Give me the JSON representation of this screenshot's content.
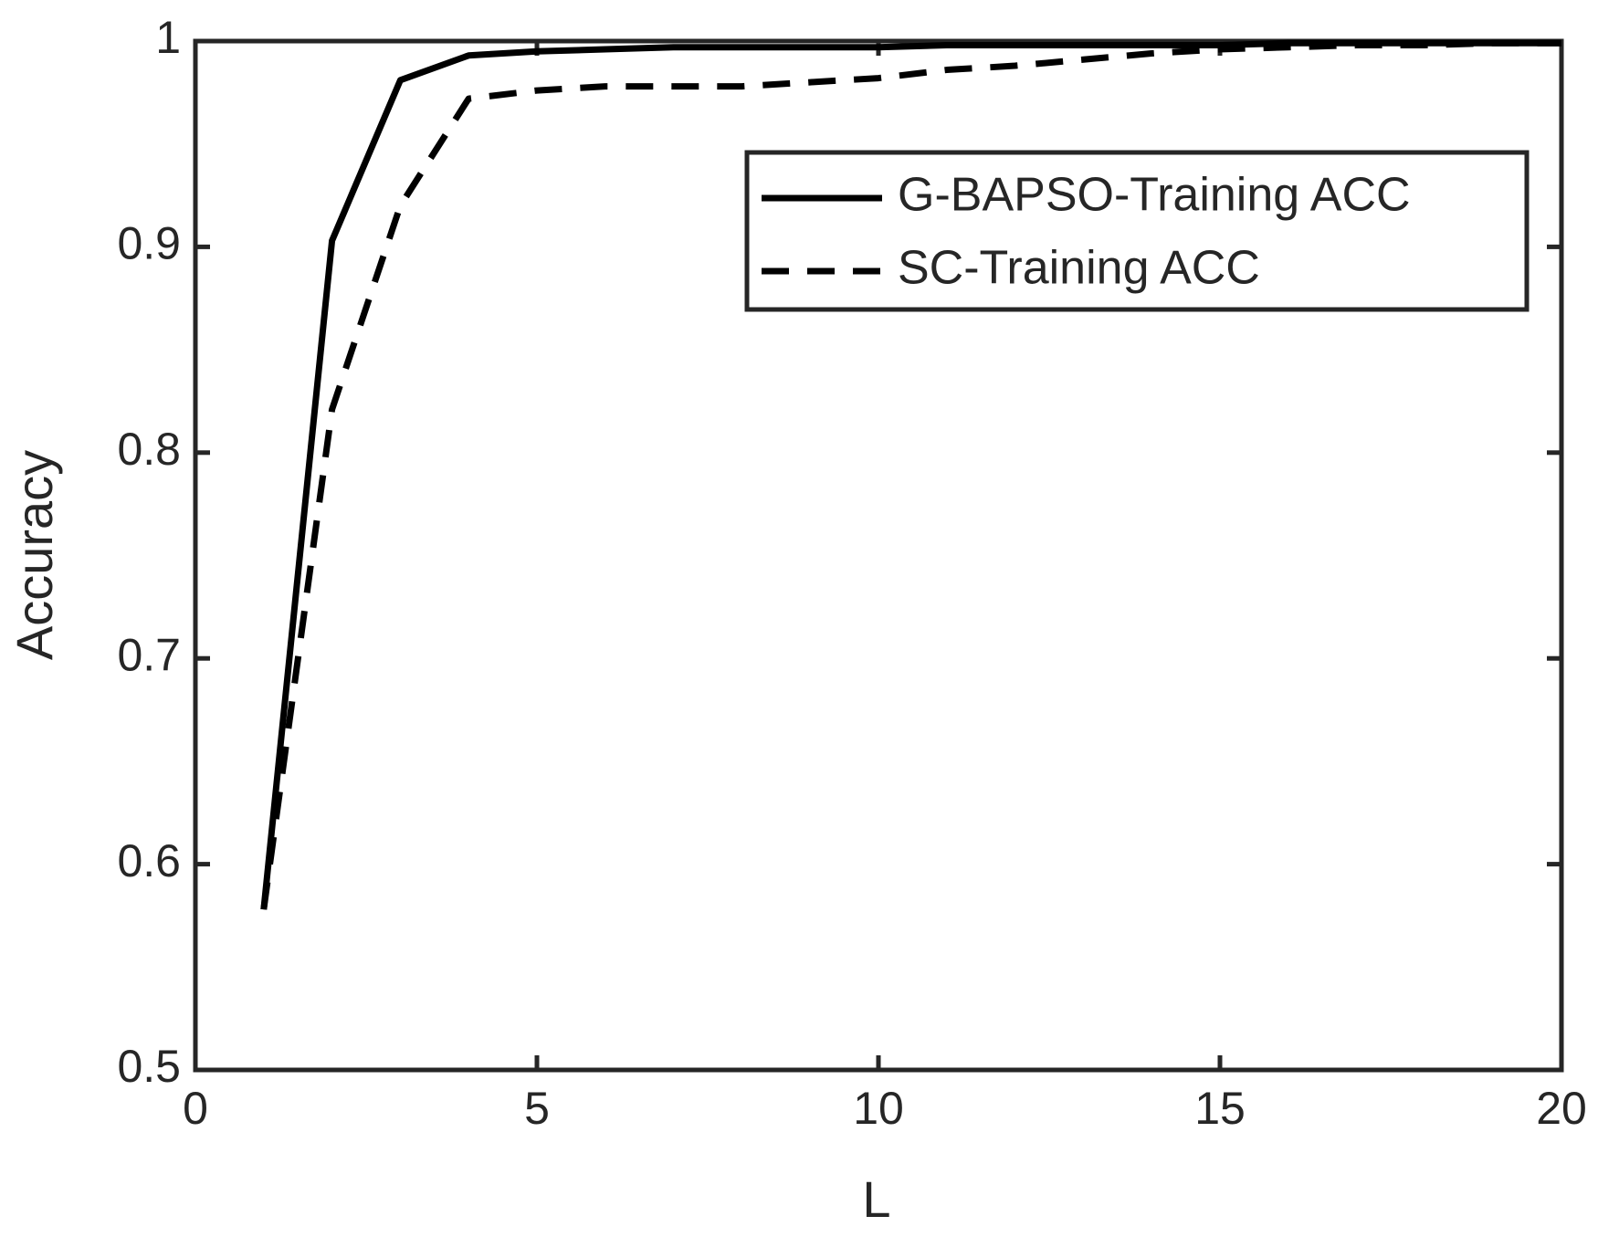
{
  "chart_data": {
    "type": "line",
    "x_label": "L",
    "y_label": "Accuracy",
    "x": [
      1,
      2,
      3,
      4,
      5,
      6,
      7,
      8,
      9,
      10,
      11,
      12,
      13,
      14,
      15,
      16,
      17,
      18,
      19,
      20
    ],
    "series": [
      {
        "name": "G-BAPSO-Training ACC",
        "color": "#000000",
        "dash": "solid",
        "values": [
          0.578,
          0.903,
          0.981,
          0.993,
          0.995,
          0.996,
          0.997,
          0.997,
          0.997,
          0.997,
          0.998,
          0.998,
          0.998,
          0.998,
          0.998,
          0.999,
          0.999,
          0.999,
          0.999,
          0.999
        ]
      },
      {
        "name": "SC-Training ACC",
        "color": "#000000",
        "dash": "dashed",
        "values": [
          0.578,
          0.821,
          0.92,
          0.972,
          0.976,
          0.978,
          0.978,
          0.978,
          0.98,
          0.982,
          0.986,
          0.988,
          0.991,
          0.994,
          0.996,
          0.997,
          0.998,
          0.998,
          0.999,
          0.999
        ]
      }
    ],
    "xlim": [
      0,
      20
    ],
    "xticks": [
      0,
      5,
      10,
      15,
      20
    ],
    "ylim": [
      0.5,
      1
    ],
    "yticks": [
      0.5,
      0.6,
      0.7,
      0.8,
      0.9,
      1
    ],
    "grid": false,
    "legend": "northeast"
  }
}
